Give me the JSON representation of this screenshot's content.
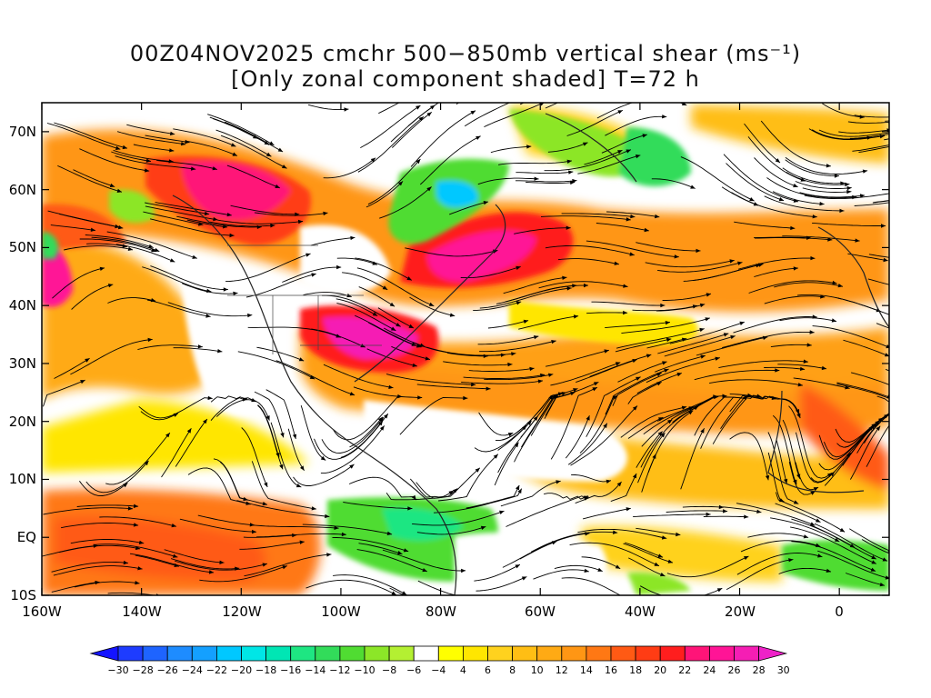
{
  "title": {
    "line1": "00Z04NOV2025 cmchr 500−850mb vertical shear (ms⁻¹)",
    "line2": "[Only zonal component shaded] T=72 h"
  },
  "axes": {
    "lat_labels": [
      "70N",
      "60N",
      "50N",
      "40N",
      "30N",
      "20N",
      "10N",
      "EQ",
      "10S"
    ],
    "lon_labels": [
      "160W",
      "140W",
      "120W",
      "100W",
      "80W",
      "60W",
      "40W",
      "20W",
      "0"
    ],
    "lat_values": [
      70,
      60,
      50,
      40,
      30,
      20,
      10,
      0,
      -10
    ],
    "lon_values": [
      -160,
      -140,
      -120,
      -100,
      -80,
      -60,
      -40,
      -20,
      0
    ],
    "lon_range": [
      -160,
      10
    ],
    "lat_range": [
      -10,
      75
    ]
  },
  "colorbar": {
    "labels": [
      "-30",
      "-28",
      "-26",
      "-24",
      "-22",
      "-20",
      "-18",
      "-16",
      "-14",
      "-12",
      "-10",
      "-8",
      "-6",
      "-4",
      "4",
      "6",
      "8",
      "10",
      "12",
      "14",
      "16",
      "18",
      "20",
      "22",
      "24",
      "26",
      "28",
      "30"
    ],
    "colors": [
      "#1414ff",
      "#1e3cff",
      "#1e64ff",
      "#1e8cff",
      "#14a0ff",
      "#00c8ff",
      "#00e6e6",
      "#00e6b4",
      "#1ee682",
      "#32dc5a",
      "#50dc32",
      "#8ce628",
      "#b4f032",
      "#ffffff",
      "#ffff00",
      "#ffe600",
      "#ffd21e",
      "#ffbe14",
      "#ffaa14",
      "#ff9614",
      "#ff7814",
      "#ff5a14",
      "#ff3c14",
      "#ff1e1e",
      "#ff1478",
      "#ff1496",
      "#f51eb4",
      "#ee22c8"
    ]
  },
  "shading": {
    "regions": [
      {
        "id": "nw-pac-jet",
        "value": 24
      },
      {
        "id": "natl-jet",
        "value": 26
      },
      {
        "id": "se-us-jet",
        "value": 24
      },
      {
        "id": "tropical-band",
        "value": 12
      },
      {
        "id": "eq-pac",
        "value": 18
      },
      {
        "id": "labrador-easterly",
        "value": -14
      },
      {
        "id": "carib-easterly",
        "value": -10
      }
    ]
  }
}
